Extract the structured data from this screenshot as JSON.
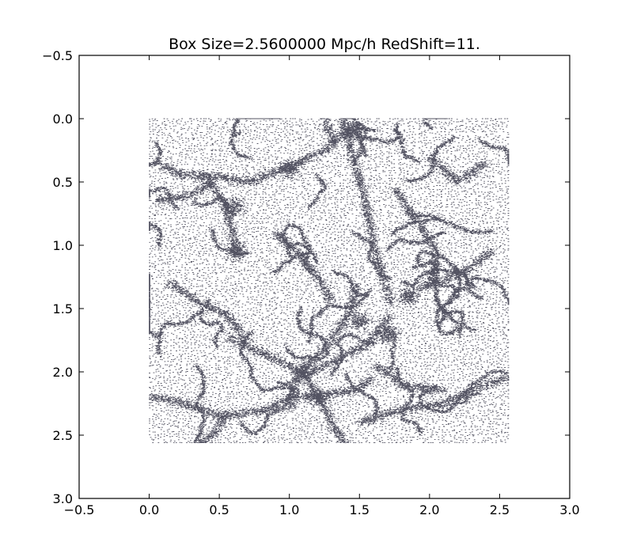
{
  "chart_data": {
    "type": "scatter",
    "title": "Box Size=2.5600000 Mpc/h  RedShift=11.",
    "xlabel": "",
    "ylabel": "",
    "xlim": [
      -0.5,
      3.0
    ],
    "ylim": [
      -0.5,
      3.0
    ],
    "y_inverted": true,
    "x_ticks": [
      "-0.5",
      "0.0",
      "0.5",
      "1.0",
      "1.5",
      "2.0",
      "2.5",
      "3.0"
    ],
    "y_ticks": [
      "-0.5",
      "0.0",
      "0.5",
      "1.0",
      "1.5",
      "2.0",
      "2.5",
      "3.0"
    ],
    "grid": false,
    "point_color": "#1a1a2e",
    "data_extent": {
      "x": [
        0.0,
        2.56
      ],
      "y": [
        0.0,
        2.56
      ]
    },
    "filaments": [
      [
        [
          0.05,
          0.35
        ],
        [
          0.25,
          0.45
        ],
        [
          0.45,
          0.45
        ],
        [
          0.7,
          0.5
        ],
        [
          0.95,
          0.4
        ],
        [
          1.25,
          0.25
        ],
        [
          1.45,
          0.05
        ]
      ],
      [
        [
          0.4,
          0.45
        ],
        [
          0.55,
          0.7
        ],
        [
          0.62,
          1.05
        ]
      ],
      [
        [
          1.38,
          0.0
        ],
        [
          1.45,
          0.3
        ],
        [
          1.55,
          0.7
        ],
        [
          1.62,
          1.1
        ],
        [
          1.72,
          1.45
        ]
      ],
      [
        [
          1.25,
          0.0
        ],
        [
          1.32,
          0.2
        ]
      ],
      [
        [
          1.9,
          1.35
        ],
        [
          2.05,
          1.3
        ],
        [
          2.25,
          1.2
        ],
        [
          2.45,
          1.05
        ]
      ],
      [
        [
          1.48,
          1.32
        ],
        [
          1.42,
          1.55
        ],
        [
          1.28,
          1.78
        ],
        [
          1.15,
          1.92
        ],
        [
          1.05,
          2.05
        ],
        [
          1.0,
          2.3
        ]
      ],
      [
        [
          0.55,
          1.72
        ],
        [
          0.8,
          1.85
        ],
        [
          1.0,
          1.95
        ],
        [
          1.12,
          2.05
        ],
        [
          1.22,
          2.22
        ],
        [
          1.32,
          2.45
        ],
        [
          1.4,
          2.56
        ]
      ],
      [
        [
          1.12,
          2.02
        ],
        [
          1.35,
          1.9
        ],
        [
          1.55,
          1.78
        ],
        [
          1.72,
          1.55
        ]
      ],
      [
        [
          0.0,
          2.2
        ],
        [
          0.25,
          2.25
        ],
        [
          0.5,
          2.35
        ],
        [
          0.85,
          2.3
        ],
        [
          1.0,
          2.2
        ]
      ],
      [
        [
          1.0,
          2.2
        ],
        [
          1.25,
          2.18
        ],
        [
          1.45,
          2.15
        ],
        [
          1.6,
          2.05
        ]
      ],
      [
        [
          1.5,
          2.4
        ],
        [
          1.8,
          2.3
        ],
        [
          2.1,
          2.25
        ],
        [
          2.4,
          2.1
        ],
        [
          2.56,
          2.05
        ]
      ],
      [
        [
          0.9,
          0.9
        ],
        [
          1.05,
          1.05
        ],
        [
          1.2,
          1.25
        ],
        [
          1.3,
          1.45
        ]
      ],
      [
        [
          0.05,
          0.65
        ],
        [
          0.3,
          0.6
        ],
        [
          0.45,
          0.5
        ]
      ],
      [
        [
          2.0,
          0.3
        ],
        [
          2.2,
          0.5
        ],
        [
          2.4,
          0.35
        ]
      ],
      [
        [
          0.15,
          1.3
        ],
        [
          0.35,
          1.45
        ],
        [
          0.55,
          1.55
        ],
        [
          0.7,
          1.75
        ]
      ],
      [
        [
          1.75,
          0.55
        ],
        [
          1.9,
          0.8
        ],
        [
          2.05,
          1.05
        ],
        [
          2.0,
          1.3
        ]
      ],
      [
        [
          0.55,
          2.35
        ],
        [
          0.45,
          2.5
        ],
        [
          0.35,
          2.56
        ]
      ],
      [
        [
          1.62,
          1.95
        ],
        [
          1.8,
          2.1
        ],
        [
          2.1,
          2.15
        ]
      ]
    ],
    "knots": [
      [
        1.1,
        2.0
      ],
      [
        1.2,
        2.2
      ],
      [
        0.6,
        0.7
      ],
      [
        1.0,
        0.4
      ],
      [
        1.5,
        1.6
      ],
      [
        1.85,
        1.4
      ],
      [
        0.62,
        1.05
      ],
      [
        1.45,
        0.1
      ],
      [
        1.7,
        1.7
      ]
    ]
  }
}
